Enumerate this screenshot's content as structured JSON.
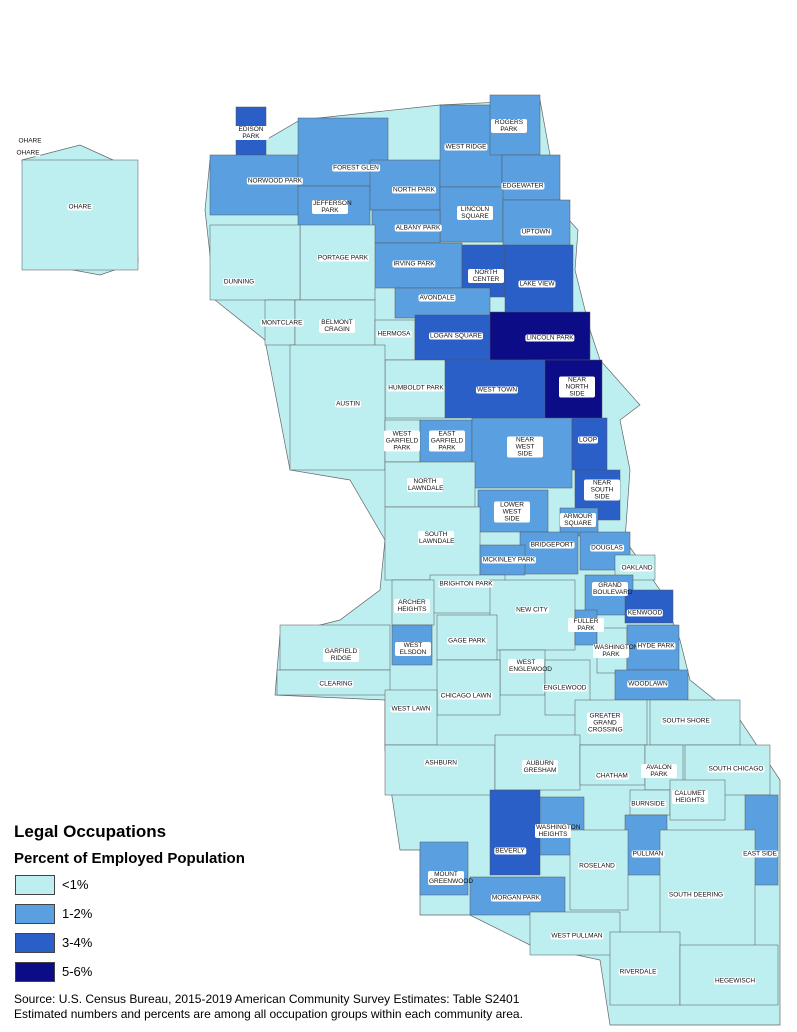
{
  "title": "Legal Occupations",
  "subtitle": "Percent of Employed Population",
  "legend": [
    {
      "label": "<1%",
      "color": "#bdeef0"
    },
    {
      "label": "1-2%",
      "color": "#5aa0e0"
    },
    {
      "label": "3-4%",
      "color": "#2b5fc8"
    },
    {
      "label": "5-6%",
      "color": "#0c0c87"
    }
  ],
  "source": [
    "Source: U.S. Census Bureau, 2015-2019 American Community Survey Estimates: Table S2401",
    "Estimated numbers and percents are among all occupation groups within each community area."
  ],
  "areas": [
    {
      "name": "OHARE",
      "color": "#bdeef0"
    },
    {
      "name": "OHARE",
      "color": "#bdeef0"
    },
    {
      "name": "OHARE",
      "color": "#bdeef0"
    },
    {
      "name": "EDISON PARK",
      "color": "#2b5fc8"
    },
    {
      "name": "NORWOOD PARK",
      "color": "#5aa0e0"
    },
    {
      "name": "FOREST GLEN",
      "color": "#5aa0e0"
    },
    {
      "name": "JEFFERSON PARK",
      "color": "#5aa0e0"
    },
    {
      "name": "NORTH PARK",
      "color": "#5aa0e0"
    },
    {
      "name": "WEST RIDGE",
      "color": "#5aa0e0"
    },
    {
      "name": "ROGERS PARK",
      "color": "#5aa0e0"
    },
    {
      "name": "EDGEWATER",
      "color": "#5aa0e0"
    },
    {
      "name": "LINCOLN SQUARE",
      "color": "#5aa0e0"
    },
    {
      "name": "UPTOWN",
      "color": "#5aa0e0"
    },
    {
      "name": "ALBANY PARK",
      "color": "#5aa0e0"
    },
    {
      "name": "IRVING PARK",
      "color": "#5aa0e0"
    },
    {
      "name": "NORTH CENTER",
      "color": "#2b5fc8"
    },
    {
      "name": "LAKE VIEW",
      "color": "#2b5fc8"
    },
    {
      "name": "AVONDALE",
      "color": "#5aa0e0"
    },
    {
      "name": "PORTAGE PARK",
      "color": "#bdeef0"
    },
    {
      "name": "DUNNING",
      "color": "#bdeef0"
    },
    {
      "name": "MONTCLARE",
      "color": "#bdeef0"
    },
    {
      "name": "BELMONT CRAGIN",
      "color": "#bdeef0"
    },
    {
      "name": "HERMOSA",
      "color": "#bdeef0"
    },
    {
      "name": "LOGAN SQUARE",
      "color": "#2b5fc8"
    },
    {
      "name": "LINCOLN PARK",
      "color": "#0c0c87"
    },
    {
      "name": "NEAR NORTH SIDE",
      "color": "#0c0c87"
    },
    {
      "name": "WEST TOWN",
      "color": "#2b5fc8"
    },
    {
      "name": "HUMBOLDT PARK",
      "color": "#bdeef0"
    },
    {
      "name": "AUSTIN",
      "color": "#bdeef0"
    },
    {
      "name": "WEST GARFIELD PARK",
      "color": "#bdeef0"
    },
    {
      "name": "EAST GARFIELD PARK",
      "color": "#5aa0e0"
    },
    {
      "name": "NEAR WEST SIDE",
      "color": "#5aa0e0"
    },
    {
      "name": "LOOP",
      "color": "#2b5fc8"
    },
    {
      "name": "NORTH LAWNDALE",
      "color": "#bdeef0"
    },
    {
      "name": "NEAR SOUTH SIDE",
      "color": "#2b5fc8"
    },
    {
      "name": "LOWER WEST SIDE",
      "color": "#5aa0e0"
    },
    {
      "name": "ARMOUR SQUARE",
      "color": "#5aa0e0"
    },
    {
      "name": "SOUTH LAWNDALE",
      "color": "#bdeef0"
    },
    {
      "name": "BRIDGEPORT",
      "color": "#5aa0e0"
    },
    {
      "name": "DOUGLAS",
      "color": "#5aa0e0"
    },
    {
      "name": "MCKINLEY PARK",
      "color": "#5aa0e0"
    },
    {
      "name": "OAKLAND",
      "color": "#bdeef0"
    },
    {
      "name": "BRIGHTON PARK",
      "color": "#bdeef0"
    },
    {
      "name": "GRAND BOULEVARD",
      "color": "#5aa0e0"
    },
    {
      "name": "ARCHER HEIGHTS",
      "color": "#bdeef0"
    },
    {
      "name": "NEW CITY",
      "color": "#bdeef0"
    },
    {
      "name": "KENWOOD",
      "color": "#2b5fc8"
    },
    {
      "name": "FULLER PARK",
      "color": "#5aa0e0"
    },
    {
      "name": "GAGE PARK",
      "color": "#bdeef0"
    },
    {
      "name": "GARFIELD RIDGE",
      "color": "#bdeef0"
    },
    {
      "name": "WEST ELSDON",
      "color": "#5aa0e0"
    },
    {
      "name": "WASHINGTON PARK",
      "color": "#bdeef0"
    },
    {
      "name": "HYDE PARK",
      "color": "#5aa0e0"
    },
    {
      "name": "WEST ENGLEWOOD",
      "color": "#bdeef0"
    },
    {
      "name": "CLEARING",
      "color": "#bdeef0"
    },
    {
      "name": "ENGLEWOOD",
      "color": "#bdeef0"
    },
    {
      "name": "WOODLAWN",
      "color": "#5aa0e0"
    },
    {
      "name": "CHICAGO LAWN",
      "color": "#bdeef0"
    },
    {
      "name": "WEST LAWN",
      "color": "#bdeef0"
    },
    {
      "name": "GREATER GRAND CROSSING",
      "color": "#bdeef0"
    },
    {
      "name": "SOUTH SHORE",
      "color": "#bdeef0"
    },
    {
      "name": "ASHBURN",
      "color": "#bdeef0"
    },
    {
      "name": "AUBURN GRESHAM",
      "color": "#bdeef0"
    },
    {
      "name": "CHATHAM",
      "color": "#bdeef0"
    },
    {
      "name": "AVALON PARK",
      "color": "#bdeef0"
    },
    {
      "name": "SOUTH CHICAGO",
      "color": "#bdeef0"
    },
    {
      "name": "BURNSIDE",
      "color": "#bdeef0"
    },
    {
      "name": "CALUMET HEIGHTS",
      "color": "#bdeef0"
    },
    {
      "name": "WASHINGTON HEIGHTS",
      "color": "#5aa0e0"
    },
    {
      "name": "BEVERLY",
      "color": "#2b5fc8"
    },
    {
      "name": "EAST SIDE",
      "color": "#5aa0e0"
    },
    {
      "name": "PULLMAN",
      "color": "#5aa0e0"
    },
    {
      "name": "MOUNT GREENWOOD",
      "color": "#5aa0e0"
    },
    {
      "name": "ROSELAND",
      "color": "#bdeef0"
    },
    {
      "name": "SOUTH DEERING",
      "color": "#bdeef0"
    },
    {
      "name": "MORGAN PARK",
      "color": "#5aa0e0"
    },
    {
      "name": "WEST PULLMAN",
      "color": "#bdeef0"
    },
    {
      "name": "RIVERDALE",
      "color": "#bdeef0"
    },
    {
      "name": "HEGEWISCH",
      "color": "#bdeef0"
    }
  ]
}
